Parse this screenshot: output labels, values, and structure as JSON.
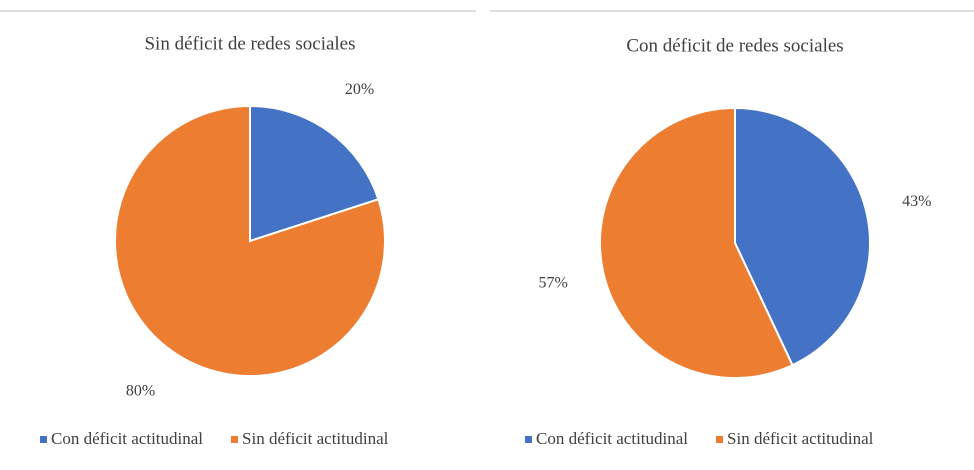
{
  "chart_data": [
    {
      "type": "pie",
      "title": "Sin déficit de redes sociales",
      "categories": [
        "Con déficit actitudinal",
        "Sin déficit actitudinal"
      ],
      "values": [
        20,
        80
      ],
      "value_labels": [
        "20%",
        "80%"
      ],
      "colors": [
        "#4472c4",
        "#ed7d31"
      ],
      "legend": "bottom"
    },
    {
      "type": "pie",
      "title": "Con déficit de redes sociales",
      "categories": [
        "Con déficit actitudinal",
        "Sin déficit actitudinal"
      ],
      "values": [
        43,
        57
      ],
      "value_labels": [
        "43%",
        "57%"
      ],
      "colors": [
        "#4472c4",
        "#ed7d31"
      ],
      "legend": "bottom"
    }
  ]
}
